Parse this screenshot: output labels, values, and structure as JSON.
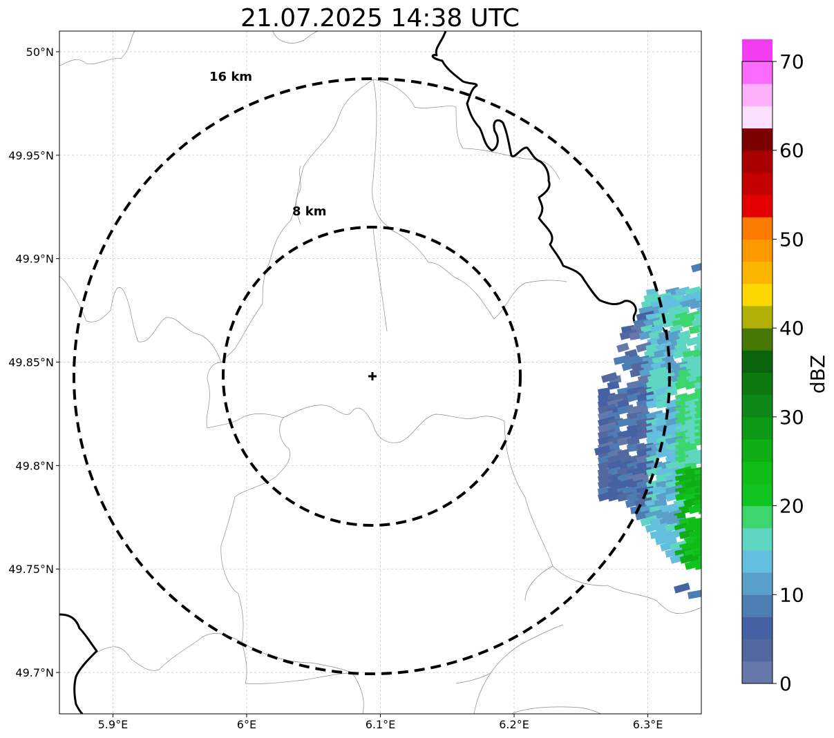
{
  "title": "21.07.2025 14:38 UTC",
  "map": {
    "lon_range": [
      5.86,
      6.34
    ],
    "lat_range": [
      49.68,
      50.01
    ],
    "lon_ticks": [
      {
        "value": 5.9,
        "label": "5.9°E"
      },
      {
        "value": 6.0,
        "label": "6°E"
      },
      {
        "value": 6.1,
        "label": "6.1°E"
      },
      {
        "value": 6.2,
        "label": "6.2°E"
      },
      {
        "value": 6.3,
        "label": "6.3°E"
      }
    ],
    "lat_ticks": [
      {
        "value": 50.0,
        "label": "50°N"
      },
      {
        "value": 49.95,
        "label": "49.95°N"
      },
      {
        "value": 49.9,
        "label": "49.9°N"
      },
      {
        "value": 49.85,
        "label": "49.85°N"
      },
      {
        "value": 49.8,
        "label": "49.8°N"
      },
      {
        "value": 49.75,
        "label": "49.75°N"
      },
      {
        "value": 49.7,
        "label": "49.7°N"
      }
    ],
    "gridlines": true,
    "radar_site": {
      "lon": 6.095,
      "lat": 49.843,
      "marker": "plus"
    },
    "range_rings": [
      {
        "label": "8 km",
        "radius_km": 8
      },
      {
        "label": "16 km",
        "radius_km": 16
      }
    ]
  },
  "colorbar": {
    "label": "dBZ",
    "tick_labels": [
      "0",
      "10",
      "20",
      "30",
      "40",
      "50",
      "60",
      "70"
    ],
    "min": 0,
    "max": 70,
    "step": 2.5,
    "colors": [
      "#6678aa",
      "#53689f",
      "#4662a5",
      "#4d7db2",
      "#5a9fc9",
      "#64bedd",
      "#5ed6c0",
      "#3dd56e",
      "#12c422",
      "#10bd16",
      "#0fae16",
      "#0d9a16",
      "#0d8818",
      "#0b7810",
      "#0a640e",
      "#477806",
      "#b0b008",
      "#fcd700",
      "#fcb600",
      "#fc9800",
      "#fc7a00",
      "#e30000",
      "#c50000",
      "#a80000",
      "#7c0000",
      "#fde0fd",
      "#fcb0fc",
      "#fc6cfc",
      "#f13cf1"
    ]
  }
}
